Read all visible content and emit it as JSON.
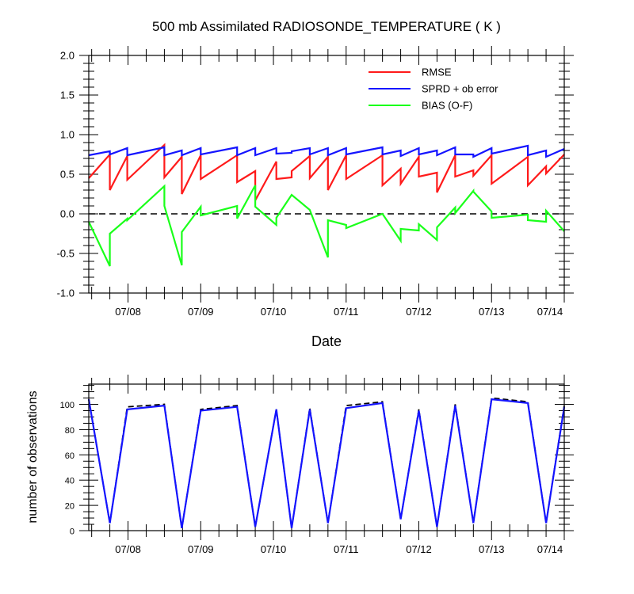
{
  "colors": {
    "rmse": "#ff1a1a",
    "spread": "#1414ff",
    "bias": "#1aff1a",
    "axis": "#000000",
    "reference": "#000000"
  },
  "chart_data": [
    {
      "type": "line",
      "title": "500 mb Assimilated RADIOSONDE_TEMPERATURE ( K )",
      "xlabel": "Date",
      "ylabel": "",
      "xlim": [
        7.46,
        14.0
      ],
      "ylim": [
        -1.0,
        2.0
      ],
      "yticks": [
        -1.0,
        -0.5,
        0.0,
        0.5,
        1.0,
        1.5,
        2.0
      ],
      "ytick_labels": [
        "-1.0",
        "-0.5",
        "0.0",
        "0.5",
        "1.0",
        "1.5",
        "2.0"
      ],
      "xticks": [
        8,
        9,
        10,
        11,
        12,
        13,
        14
      ],
      "xtick_labels": [
        "07/08",
        "07/09",
        "07/10",
        "07/11",
        "07/12",
        "07/13",
        "07/14"
      ],
      "grid": false,
      "legend_position": "top-right",
      "reference_line": {
        "y": 0.0,
        "style": "dashed"
      },
      "series": [
        {
          "name": "RMSE",
          "color_key": "rmse",
          "points": [
            [
              7.46,
              0.45
            ],
            [
              7.75,
              0.75
            ],
            [
              7.75,
              0.3
            ],
            [
              7.99,
              0.73
            ],
            [
              7.99,
              0.43
            ],
            [
              8.5,
              0.87
            ],
            [
              8.5,
              0.46
            ],
            [
              8.74,
              0.72
            ],
            [
              8.74,
              0.25
            ],
            [
              9.0,
              0.74
            ],
            [
              9.0,
              0.44
            ],
            [
              9.5,
              0.74
            ],
            [
              9.5,
              0.4
            ],
            [
              9.75,
              0.54
            ],
            [
              9.75,
              0.17
            ],
            [
              10.04,
              0.66
            ],
            [
              10.04,
              0.44
            ],
            [
              10.25,
              0.46
            ],
            [
              10.25,
              0.54
            ],
            [
              10.5,
              0.73
            ],
            [
              10.5,
              0.45
            ],
            [
              10.75,
              0.72
            ],
            [
              10.75,
              0.3
            ],
            [
              11.0,
              0.74
            ],
            [
              11.0,
              0.44
            ],
            [
              11.5,
              0.74
            ],
            [
              11.5,
              0.36
            ],
            [
              11.75,
              0.57
            ],
            [
              11.75,
              0.38
            ],
            [
              12.0,
              0.72
            ],
            [
              12.0,
              0.47
            ],
            [
              12.25,
              0.52
            ],
            [
              12.25,
              0.27
            ],
            [
              12.5,
              0.74
            ],
            [
              12.5,
              0.47
            ],
            [
              12.75,
              0.55
            ],
            [
              12.75,
              0.48
            ],
            [
              13.0,
              0.74
            ],
            [
              13.0,
              0.38
            ],
            [
              13.5,
              0.72
            ],
            [
              13.5,
              0.36
            ],
            [
              13.75,
              0.6
            ],
            [
              13.75,
              0.51
            ],
            [
              14.0,
              0.75
            ]
          ]
        },
        {
          "name": "SPRD + ob error",
          "color_key": "spread",
          "points": [
            [
              7.46,
              0.74
            ],
            [
              7.75,
              0.79
            ],
            [
              7.75,
              0.75
            ],
            [
              7.99,
              0.83
            ],
            [
              7.99,
              0.74
            ],
            [
              8.5,
              0.84
            ],
            [
              8.5,
              0.74
            ],
            [
              8.74,
              0.8
            ],
            [
              8.74,
              0.74
            ],
            [
              9.0,
              0.83
            ],
            [
              9.0,
              0.75
            ],
            [
              9.5,
              0.84
            ],
            [
              9.5,
              0.74
            ],
            [
              9.75,
              0.83
            ],
            [
              9.75,
              0.74
            ],
            [
              10.04,
              0.83
            ],
            [
              10.04,
              0.76
            ],
            [
              10.25,
              0.77
            ],
            [
              10.25,
              0.79
            ],
            [
              10.5,
              0.83
            ],
            [
              10.5,
              0.75
            ],
            [
              10.75,
              0.83
            ],
            [
              10.75,
              0.74
            ],
            [
              11.0,
              0.83
            ],
            [
              11.0,
              0.75
            ],
            [
              11.5,
              0.84
            ],
            [
              11.5,
              0.75
            ],
            [
              11.75,
              0.8
            ],
            [
              11.75,
              0.73
            ],
            [
              12.0,
              0.83
            ],
            [
              12.0,
              0.75
            ],
            [
              12.25,
              0.8
            ],
            [
              12.25,
              0.74
            ],
            [
              12.5,
              0.84
            ],
            [
              12.5,
              0.75
            ],
            [
              12.75,
              0.75
            ],
            [
              12.75,
              0.72
            ],
            [
              13.0,
              0.83
            ],
            [
              13.0,
              0.76
            ],
            [
              13.5,
              0.86
            ],
            [
              13.5,
              0.74
            ],
            [
              13.75,
              0.8
            ],
            [
              13.75,
              0.72
            ],
            [
              14.0,
              0.82
            ]
          ]
        },
        {
          "name": "BIAS (O-F)",
          "color_key": "bias",
          "points": [
            [
              7.46,
              -0.1
            ],
            [
              7.75,
              -0.66
            ],
            [
              7.75,
              -0.25
            ],
            [
              7.99,
              -0.06
            ],
            [
              7.99,
              -0.08
            ],
            [
              8.5,
              0.35
            ],
            [
              8.5,
              0.1
            ],
            [
              8.74,
              -0.65
            ],
            [
              8.74,
              -0.23
            ],
            [
              9.0,
              0.09
            ],
            [
              9.0,
              -0.02
            ],
            [
              9.5,
              0.1
            ],
            [
              9.5,
              -0.06
            ],
            [
              9.75,
              0.36
            ],
            [
              9.75,
              0.09
            ],
            [
              10.04,
              -0.14
            ],
            [
              10.04,
              -0.05
            ],
            [
              10.25,
              0.24
            ],
            [
              10.25,
              0.24
            ],
            [
              10.5,
              0.05
            ],
            [
              10.5,
              0.05
            ],
            [
              10.75,
              -0.55
            ],
            [
              10.75,
              -0.08
            ],
            [
              11.0,
              -0.14
            ],
            [
              11.0,
              -0.18
            ],
            [
              11.5,
              0.0
            ],
            [
              11.5,
              0.0
            ],
            [
              11.75,
              -0.34
            ],
            [
              11.75,
              -0.19
            ],
            [
              12.0,
              -0.21
            ],
            [
              12.0,
              -0.13
            ],
            [
              12.25,
              -0.33
            ],
            [
              12.25,
              -0.17
            ],
            [
              12.5,
              0.08
            ],
            [
              12.5,
              0.01
            ],
            [
              12.75,
              0.29
            ],
            [
              12.75,
              0.28
            ],
            [
              13.0,
              0.03
            ],
            [
              13.0,
              -0.05
            ],
            [
              13.5,
              -0.01
            ],
            [
              13.5,
              -0.08
            ],
            [
              13.75,
              -0.1
            ],
            [
              13.75,
              0.04
            ],
            [
              14.0,
              -0.22
            ]
          ]
        }
      ]
    },
    {
      "type": "line",
      "title": "",
      "xlabel": "",
      "ylabel": "number of observations",
      "xlim": [
        7.46,
        14.0
      ],
      "ylim": [
        0,
        116
      ],
      "yticks": [
        0,
        20,
        40,
        60,
        80,
        100
      ],
      "ytick_labels": [
        "0",
        "20",
        "40",
        "60",
        "80",
        "100"
      ],
      "xticks": [
        8,
        9,
        10,
        11,
        12,
        13,
        14
      ],
      "xtick_labels": [
        "07/08",
        "07/09",
        "07/10",
        "07/11",
        "07/12",
        "07/13",
        "07/14"
      ],
      "grid": false,
      "series": [
        {
          "name": "",
          "color_key": "reference",
          "style": "dashed",
          "points": [
            [
              7.46,
              104
            ],
            [
              7.75,
              6
            ],
            [
              7.99,
              98
            ],
            [
              8.5,
              100
            ],
            [
              8.74,
              2
            ],
            [
              9.0,
              96
            ],
            [
              9.5,
              99
            ],
            [
              9.75,
              3
            ],
            [
              10.04,
              96
            ],
            [
              10.25,
              2
            ],
            [
              10.5,
              97
            ],
            [
              10.75,
              6
            ],
            [
              11.0,
              99
            ],
            [
              11.5,
              102
            ],
            [
              11.75,
              9
            ],
            [
              12.0,
              96
            ],
            [
              12.25,
              3
            ],
            [
              12.5,
              100
            ],
            [
              12.75,
              6
            ],
            [
              13.0,
              105
            ],
            [
              13.5,
              102
            ],
            [
              13.75,
              6
            ],
            [
              14.0,
              99
            ]
          ]
        },
        {
          "name": "",
          "color_key": "spread",
          "style": "solid",
          "points": [
            [
              7.46,
              104
            ],
            [
              7.75,
              6
            ],
            [
              7.99,
              96
            ],
            [
              8.5,
              99
            ],
            [
              8.74,
              2
            ],
            [
              9.0,
              95
            ],
            [
              9.5,
              98
            ],
            [
              9.75,
              3
            ],
            [
              10.04,
              96
            ],
            [
              10.25,
              2
            ],
            [
              10.5,
              96
            ],
            [
              10.75,
              6
            ],
            [
              11.0,
              97
            ],
            [
              11.5,
              101
            ],
            [
              11.75,
              9
            ],
            [
              12.0,
              95
            ],
            [
              12.25,
              3
            ],
            [
              12.5,
              99
            ],
            [
              12.75,
              6
            ],
            [
              13.0,
              104
            ],
            [
              13.5,
              101
            ],
            [
              13.75,
              6
            ],
            [
              14.0,
              98
            ]
          ]
        }
      ]
    }
  ]
}
